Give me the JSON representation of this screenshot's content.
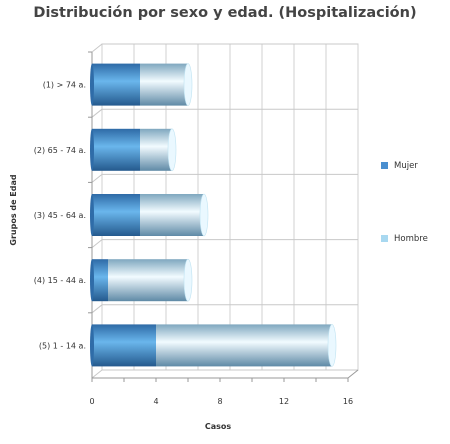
{
  "chart_data": {
    "type": "bar",
    "orientation": "horizontal",
    "stacked": true,
    "title": "Distribución por sexo y edad. (Hospitalización)",
    "xlabel": "Casos",
    "ylabel": "Grupos de Edad",
    "categories": [
      "(1) > 74 a.",
      "(2) 65 - 74 a.",
      "(3) 45 - 64 a.",
      "(4) 15 - 44 a.",
      "(5) 1 - 14 a."
    ],
    "series": [
      {
        "name": "Mujer",
        "values": [
          3,
          3,
          3,
          1,
          4
        ],
        "color": "#4a8fd0"
      },
      {
        "name": "Hombre",
        "values": [
          3,
          2,
          4,
          5,
          11
        ],
        "color": "#a8d8f0"
      }
    ],
    "xlim": [
      0,
      16
    ],
    "xticks": [
      0,
      4,
      8,
      12,
      16
    ],
    "legend_position": "right",
    "grid": true
  }
}
